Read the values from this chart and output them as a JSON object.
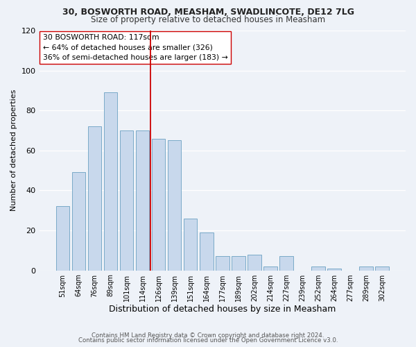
{
  "title1": "30, BOSWORTH ROAD, MEASHAM, SWADLINCOTE, DE12 7LG",
  "title2": "Size of property relative to detached houses in Measham",
  "xlabel": "Distribution of detached houses by size in Measham",
  "ylabel": "Number of detached properties",
  "bar_labels": [
    "51sqm",
    "64sqm",
    "76sqm",
    "89sqm",
    "101sqm",
    "114sqm",
    "126sqm",
    "139sqm",
    "151sqm",
    "164sqm",
    "177sqm",
    "189sqm",
    "202sqm",
    "214sqm",
    "227sqm",
    "239sqm",
    "252sqm",
    "264sqm",
    "277sqm",
    "289sqm",
    "302sqm"
  ],
  "bar_values": [
    32,
    49,
    72,
    89,
    70,
    70,
    66,
    65,
    26,
    19,
    7,
    7,
    8,
    2,
    7,
    0,
    2,
    1,
    0,
    2,
    2
  ],
  "bar_color": "#c8d8ec",
  "bar_edge_color": "#7aaac8",
  "annotation_line_x_label": "114sqm",
  "annotation_line_color": "#cc0000",
  "annotation_box_text": "30 BOSWORTH ROAD: 117sqm\n← 64% of detached houses are smaller (326)\n36% of semi-detached houses are larger (183) →",
  "ylim": [
    0,
    120
  ],
  "yticks": [
    0,
    20,
    40,
    60,
    80,
    100,
    120
  ],
  "footer1": "Contains HM Land Registry data © Crown copyright and database right 2024.",
  "footer2": "Contains public sector information licensed under the Open Government Licence v3.0.",
  "bg_color": "#eef2f8"
}
